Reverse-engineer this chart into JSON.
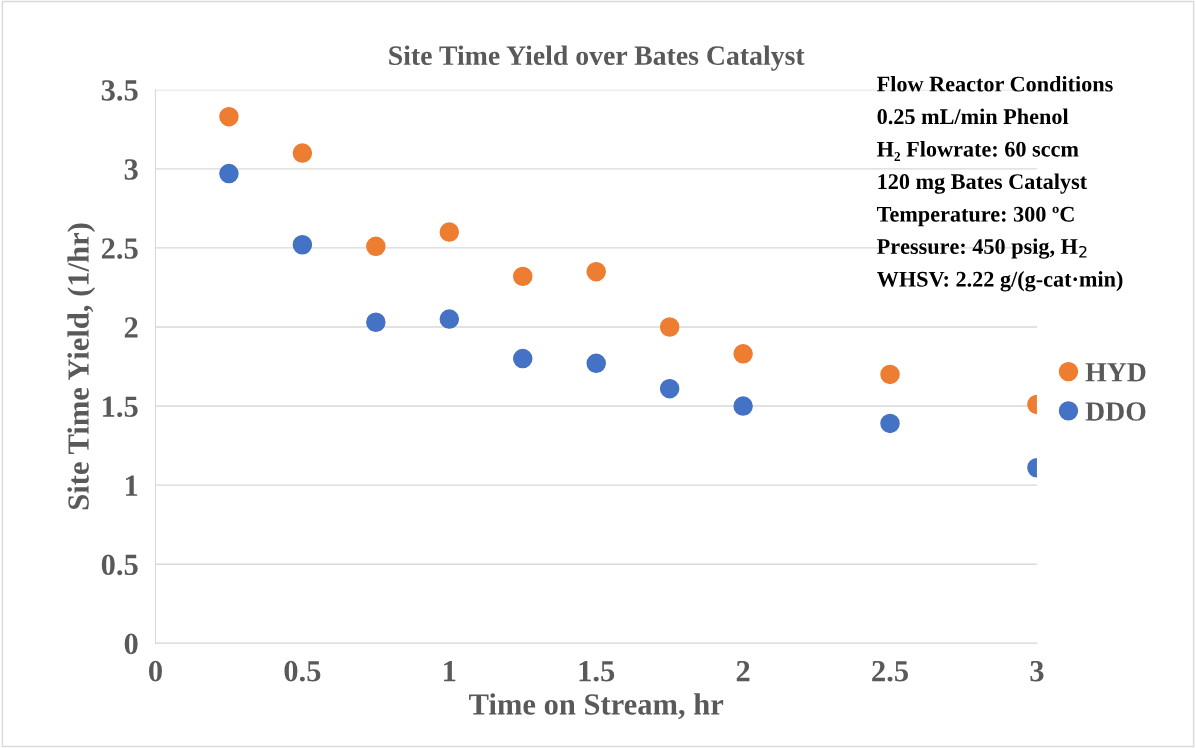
{
  "chart_data": {
    "type": "scatter",
    "title": "Site Time Yield over Bates Catalyst",
    "xlabel": "Time on Stream, hr",
    "ylabel": "Site Time Yield, (1/hr)",
    "x": [
      0.25,
      0.5,
      0.75,
      1,
      1.25,
      1.5,
      1.75,
      2,
      2.5,
      3
    ],
    "series": [
      {
        "name": "HYD",
        "color": "#ed7d31",
        "values": [
          3.33,
          3.1,
          2.51,
          2.6,
          2.32,
          2.35,
          2.0,
          1.83,
          1.7,
          1.51
        ]
      },
      {
        "name": "DDO",
        "color": "#4472c4",
        "values": [
          2.97,
          2.52,
          2.03,
          2.05,
          1.8,
          1.77,
          1.61,
          1.5,
          1.39,
          1.11
        ]
      }
    ],
    "xlim": [
      0,
      3
    ],
    "xticks": [
      0,
      0.5,
      1,
      1.5,
      2,
      2.5,
      3
    ],
    "ylim": [
      0,
      3.5
    ],
    "yticks": [
      0,
      0.5,
      1,
      1.5,
      2,
      2.5,
      3,
      3.5
    ],
    "grid": "y",
    "legend": "right",
    "marker": "circle",
    "annotations": [
      "Flow Reactor Conditions",
      "0.25 mL/min Phenol",
      "H₂ Flowrate: 60 sccm",
      "120 mg Bates Catalyst",
      "Temperature: 300 ºC",
      "Pressure: 450 psig, H$_{2}$",
      "WHSV: 2.22 g/(g-cat·min)"
    ]
  }
}
